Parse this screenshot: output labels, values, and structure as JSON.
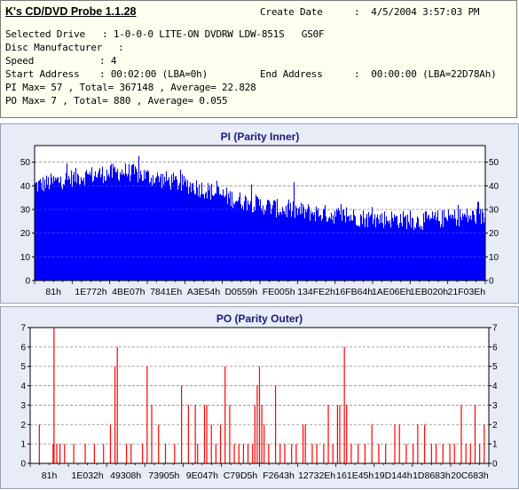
{
  "app": {
    "title": "K's CD/DVD Probe 1.1.28"
  },
  "info": {
    "create_date_label": "Create Date",
    "create_date_value": ":  4/5/2004 3:57:03 PM",
    "selected_drive_label": "Selected Drive",
    "selected_drive_value": ": 1-0-0-0 LITE-ON DVDRW LDW-851S   GS0F",
    "disc_manufacturer_label": "Disc Manufacturer",
    "disc_manufacturer_value": ":",
    "speed_label": "Speed",
    "speed_value": ": 4",
    "start_address_label": "Start Address",
    "start_address_value": ": 00:02:00 (LBA=0h)",
    "end_address_label": "End Address",
    "end_address_value": ":  00:00:00 (LBA=22D78Ah)",
    "pi_summary": "PI Max= 57 , Total= 367148 , Average= 22.828",
    "po_summary": "PO Max= 7 , Total= 880 , Average= 0.055"
  },
  "chart_data": [
    {
      "type": "bar",
      "title": "PI (Parity Inner)",
      "xlabel": "",
      "ylabel": "",
      "ylim": [
        0,
        57
      ],
      "yticks": [
        0,
        10,
        20,
        30,
        40,
        50
      ],
      "xtick_labels": [
        "81h",
        "1E772h",
        "4BE07h",
        "7841Eh",
        "A3E54h",
        "D0559h",
        "FE005h",
        "134FE2h",
        "16FB64h",
        "1AE06Eh",
        "1EB020h",
        "21F03Eh"
      ],
      "grid": true,
      "color": "#0000ff",
      "max": 57,
      "average": 22.828,
      "envelope": {
        "position": [
          0.0,
          0.05,
          0.1,
          0.15,
          0.2,
          0.25,
          0.3,
          0.35,
          0.4,
          0.45,
          0.5,
          0.55,
          0.6,
          0.65,
          0.7,
          0.75,
          0.8,
          0.85,
          0.9,
          0.95,
          1.0
        ],
        "value": [
          40,
          42,
          44,
          45,
          46,
          44,
          42,
          40,
          37,
          34,
          32,
          30,
          29,
          28,
          27,
          26,
          26,
          25,
          26,
          27,
          27
        ]
      },
      "values": [
        37,
        40,
        42,
        44,
        45,
        47,
        46,
        44,
        40,
        36,
        33,
        30,
        29,
        28,
        27,
        26,
        25,
        24,
        26,
        27,
        26
      ]
    },
    {
      "type": "bar",
      "title": "PO (Parity Outer)",
      "xlabel": "",
      "ylabel": "",
      "ylim": [
        0,
        7
      ],
      "yticks": [
        0,
        1,
        2,
        3,
        4,
        5,
        6,
        7
      ],
      "xtick_labels": [
        "81h",
        "1E032h",
        "49308h",
        "73905h",
        "9E047h",
        "C79D5h",
        "F2643h",
        "12732Eh",
        "161E45h",
        "19D144h",
        "1D8683h",
        "20C683h"
      ],
      "grid": true,
      "color": "#ff0000",
      "max": 7,
      "average": 0.055,
      "spikes": [
        {
          "x": 0.02,
          "y": 2
        },
        {
          "x": 0.05,
          "y": 1
        },
        {
          "x": 0.052,
          "y": 7
        },
        {
          "x": 0.058,
          "y": 1
        },
        {
          "x": 0.065,
          "y": 1
        },
        {
          "x": 0.075,
          "y": 1
        },
        {
          "x": 0.095,
          "y": 1
        },
        {
          "x": 0.12,
          "y": 1
        },
        {
          "x": 0.14,
          "y": 1
        },
        {
          "x": 0.16,
          "y": 1
        },
        {
          "x": 0.175,
          "y": 2
        },
        {
          "x": 0.185,
          "y": 5
        },
        {
          "x": 0.19,
          "y": 6
        },
        {
          "x": 0.21,
          "y": 1
        },
        {
          "x": 0.22,
          "y": 1
        },
        {
          "x": 0.245,
          "y": 1
        },
        {
          "x": 0.255,
          "y": 5
        },
        {
          "x": 0.265,
          "y": 3
        },
        {
          "x": 0.28,
          "y": 2
        },
        {
          "x": 0.295,
          "y": 1
        },
        {
          "x": 0.315,
          "y": 1
        },
        {
          "x": 0.33,
          "y": 4
        },
        {
          "x": 0.345,
          "y": 3
        },
        {
          "x": 0.36,
          "y": 3
        },
        {
          "x": 0.365,
          "y": 1
        },
        {
          "x": 0.38,
          "y": 3
        },
        {
          "x": 0.385,
          "y": 3
        },
        {
          "x": 0.395,
          "y": 2
        },
        {
          "x": 0.405,
          "y": 1
        },
        {
          "x": 0.415,
          "y": 2
        },
        {
          "x": 0.425,
          "y": 5
        },
        {
          "x": 0.435,
          "y": 3
        },
        {
          "x": 0.445,
          "y": 1
        },
        {
          "x": 0.455,
          "y": 1
        },
        {
          "x": 0.465,
          "y": 1
        },
        {
          "x": 0.475,
          "y": 1
        },
        {
          "x": 0.485,
          "y": 1
        },
        {
          "x": 0.49,
          "y": 3
        },
        {
          "x": 0.495,
          "y": 4
        },
        {
          "x": 0.5,
          "y": 5
        },
        {
          "x": 0.505,
          "y": 3
        },
        {
          "x": 0.51,
          "y": 2
        },
        {
          "x": 0.52,
          "y": 1
        },
        {
          "x": 0.535,
          "y": 4
        },
        {
          "x": 0.545,
          "y": 1
        },
        {
          "x": 0.555,
          "y": 1
        },
        {
          "x": 0.57,
          "y": 1
        },
        {
          "x": 0.58,
          "y": 1
        },
        {
          "x": 0.595,
          "y": 2
        },
        {
          "x": 0.6,
          "y": 2
        },
        {
          "x": 0.615,
          "y": 1
        },
        {
          "x": 0.625,
          "y": 1
        },
        {
          "x": 0.64,
          "y": 1
        },
        {
          "x": 0.65,
          "y": 3
        },
        {
          "x": 0.66,
          "y": 1
        },
        {
          "x": 0.67,
          "y": 3
        },
        {
          "x": 0.675,
          "y": 3
        },
        {
          "x": 0.685,
          "y": 6
        },
        {
          "x": 0.69,
          "y": 3
        },
        {
          "x": 0.7,
          "y": 1
        },
        {
          "x": 0.715,
          "y": 1
        },
        {
          "x": 0.73,
          "y": 1
        },
        {
          "x": 0.745,
          "y": 2
        },
        {
          "x": 0.76,
          "y": 1
        },
        {
          "x": 0.775,
          "y": 1
        },
        {
          "x": 0.795,
          "y": 2
        },
        {
          "x": 0.805,
          "y": 2
        },
        {
          "x": 0.82,
          "y": 1
        },
        {
          "x": 0.835,
          "y": 1
        },
        {
          "x": 0.845,
          "y": 2
        },
        {
          "x": 0.86,
          "y": 2
        },
        {
          "x": 0.875,
          "y": 1
        },
        {
          "x": 0.885,
          "y": 1
        },
        {
          "x": 0.9,
          "y": 1
        },
        {
          "x": 0.915,
          "y": 1
        },
        {
          "x": 0.925,
          "y": 1
        },
        {
          "x": 0.94,
          "y": 3
        },
        {
          "x": 0.95,
          "y": 1
        },
        {
          "x": 0.96,
          "y": 1
        },
        {
          "x": 0.97,
          "y": 3
        },
        {
          "x": 0.98,
          "y": 1
        },
        {
          "x": 0.99,
          "y": 2
        }
      ]
    }
  ]
}
